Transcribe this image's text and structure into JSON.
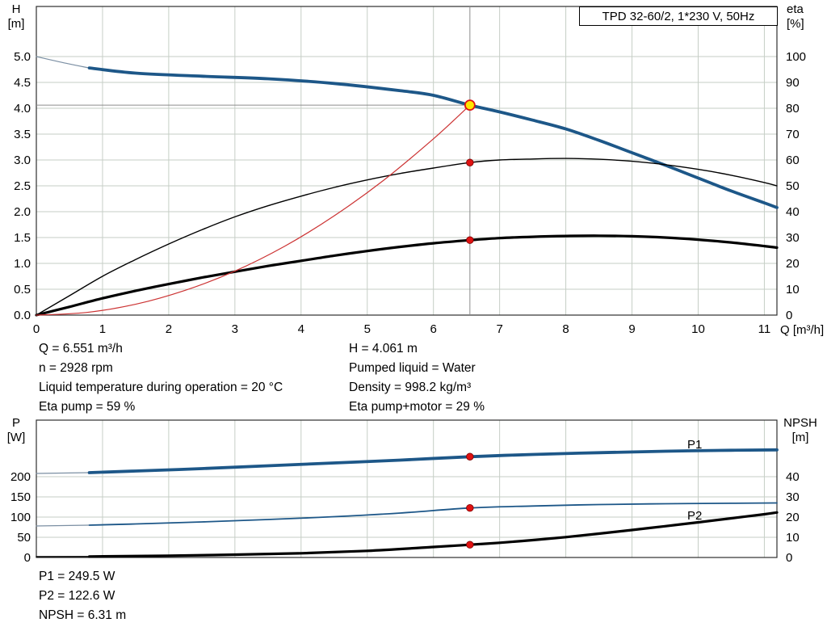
{
  "title_box": "TPD 32-60/2, 1*230 V, 50Hz",
  "colors": {
    "curve_blue": "#1d5788",
    "curve_blue_thin": "#7b8fa3",
    "curve_black": "#000000",
    "curve_red": "#cc3333",
    "marker_red": "#e01212",
    "duty_yellow": "#ffe600",
    "grid": "#c6cec6",
    "axis": "#2e2e2e",
    "crosshair": "#8c8c8c"
  },
  "chart_data": [
    {
      "id": "performance",
      "type": "line",
      "x": {
        "label": "Q [m³/h]",
        "min": 0,
        "max": 11.19,
        "tick_values": [
          0,
          1,
          2,
          3,
          4,
          5,
          6,
          7,
          8,
          9,
          10,
          11
        ],
        "tick_labels": [
          "0",
          "1",
          "2",
          "3",
          "4",
          "5",
          "6",
          "7",
          "8",
          "9",
          "10",
          "11"
        ]
      },
      "y_left": {
        "label_lines": [
          "H",
          "[m]"
        ],
        "min": 0,
        "max": 5.969,
        "tick_values": [
          0,
          0.5,
          1,
          1.5,
          2,
          2.5,
          3,
          3.5,
          4,
          4.5,
          5
        ],
        "tick_labels": [
          "0.0",
          "0.5",
          "1.0",
          "1.5",
          "2.0",
          "2.5",
          "3.0",
          "3.5",
          "4.0",
          "4.5",
          "5.0"
        ]
      },
      "y_right": {
        "label_lines": [
          "eta",
          "[%]"
        ],
        "min": 0,
        "max": 119.4,
        "tick_values": [
          0,
          10,
          20,
          30,
          40,
          50,
          60,
          70,
          80,
          90,
          100
        ],
        "tick_labels": [
          "0",
          "10",
          "20",
          "30",
          "40",
          "50",
          "60",
          "70",
          "80",
          "90",
          "100"
        ]
      },
      "series": [
        {
          "id": "pump-curve-extension",
          "axis": "left",
          "style": "thin_blue",
          "x": [
            0,
            0.45,
            0.8
          ],
          "y": [
            5.0,
            4.87,
            4.78
          ]
        },
        {
          "id": "pump-curve",
          "axis": "left",
          "style": "thick_blue",
          "x": [
            0.8,
            1.5,
            2.5,
            3.5,
            4.5,
            5.5,
            6.0,
            6.551,
            7.0,
            7.5,
            8.0,
            8.5,
            9.0,
            9.5,
            10.0,
            10.5,
            11.0,
            11.19
          ],
          "y": [
            4.78,
            4.68,
            4.62,
            4.57,
            4.48,
            4.34,
            4.25,
            4.061,
            3.93,
            3.77,
            3.6,
            3.38,
            3.14,
            2.9,
            2.65,
            2.4,
            2.17,
            2.08
          ]
        },
        {
          "id": "eta-pump-curve",
          "axis": "right",
          "style": "thin_black",
          "x": [
            0,
            0.5,
            1,
            1.5,
            2,
            2.5,
            3,
            3.5,
            4,
            4.5,
            5,
            5.5,
            6,
            6.551,
            7,
            7.5,
            8,
            8.5,
            9,
            9.5,
            10,
            10.5,
            11,
            11.19
          ],
          "y": [
            0,
            7.5,
            15,
            21.5,
            27.5,
            33,
            38,
            42.3,
            46,
            49.4,
            52.3,
            54.8,
            56.9,
            59,
            60,
            60.4,
            60.6,
            60.3,
            59.5,
            58.2,
            56.4,
            54.1,
            51.3,
            50
          ]
        },
        {
          "id": "eta-pump-motor-curve",
          "axis": "right",
          "style": "thick_black",
          "x": [
            0,
            0.5,
            1,
            1.5,
            2,
            2.5,
            3,
            3.5,
            4,
            4.5,
            5,
            5.5,
            6,
            6.551,
            7,
            7.5,
            8,
            8.5,
            9,
            9.5,
            10,
            10.5,
            11,
            11.19
          ],
          "y": [
            0,
            3.2,
            6.5,
            9.4,
            12,
            14.5,
            16.8,
            19,
            21,
            23,
            24.8,
            26.4,
            27.8,
            29,
            29.8,
            30.3,
            30.6,
            30.7,
            30.5,
            30,
            29.2,
            28.1,
            26.7,
            26.1
          ]
        },
        {
          "id": "system-curve",
          "axis": "left",
          "style": "thin_red",
          "x": [
            0,
            0.75,
            1.5,
            2.25,
            3,
            3.75,
            4.5,
            5.25,
            6,
            6.551
          ],
          "y": [
            0,
            0.05,
            0.21,
            0.48,
            0.85,
            1.33,
            1.92,
            2.61,
            3.41,
            4.061
          ]
        }
      ],
      "crosshair": {
        "x": 6.551,
        "y": 4.061
      },
      "duty_point": {
        "x": 6.551,
        "y": 4.061,
        "axis": "left"
      },
      "markers": [
        {
          "x": 6.551,
          "y": 59,
          "axis": "right"
        },
        {
          "x": 6.551,
          "y": 29,
          "axis": "right"
        }
      ]
    },
    {
      "id": "power-npsh",
      "type": "line",
      "x": {
        "label": "",
        "min": 0,
        "max": 11.19,
        "tick_values": [
          0,
          1,
          2,
          3,
          4,
          5,
          6,
          7,
          8,
          9,
          10,
          11
        ],
        "tick_labels": [
          "0",
          "1",
          "2",
          "3",
          "4",
          "5",
          "6",
          "7",
          "8",
          "9",
          "10",
          "11"
        ]
      },
      "y_left": {
        "label_lines": [
          "P",
          "[W]"
        ],
        "min": 0,
        "max": 340,
        "tick_values": [
          0,
          50,
          100,
          150,
          200
        ],
        "tick_labels": [
          "0",
          "50",
          "100",
          "150",
          "200"
        ]
      },
      "y_right": {
        "label_lines": [
          "NPSH",
          "[m]"
        ],
        "min": 0,
        "max": 68,
        "tick_values": [
          0,
          10,
          20,
          30,
          40
        ],
        "tick_labels": [
          "0",
          "10",
          "20",
          "30",
          "40"
        ]
      },
      "series": [
        {
          "id": "p1-curve-extension",
          "axis": "left",
          "style": "thin_blue",
          "x": [
            0,
            0.8
          ],
          "y": [
            208,
            210
          ]
        },
        {
          "id": "p1-curve",
          "label": "P1",
          "axis": "left",
          "style": "thick_blue",
          "x": [
            0.8,
            1.5,
            2.5,
            3.5,
            4.5,
            5.5,
            6.551,
            7.5,
            8.5,
            9.5,
            10.5,
            11.19
          ],
          "y": [
            210,
            214,
            220,
            227,
            234,
            241,
            249.5,
            255,
            259.5,
            263,
            265.5,
            266.5
          ]
        },
        {
          "id": "p2-curve-extension",
          "axis": "left",
          "style": "thin_blue",
          "x": [
            0,
            0.8
          ],
          "y": [
            78,
            80
          ]
        },
        {
          "id": "p2-curve",
          "label": "P2",
          "axis": "left",
          "style": "medium_blue",
          "x": [
            0.8,
            1.5,
            2.5,
            3.5,
            4.5,
            5.5,
            6.551,
            7.5,
            8.5,
            9.5,
            10.5,
            11.19
          ],
          "y": [
            80,
            83,
            88,
            94,
            101,
            110,
            122.6,
            127.5,
            131,
            133,
            134.3,
            135
          ]
        },
        {
          "id": "npsh-curve-extension",
          "axis": "right",
          "style": "thin_black",
          "x": [
            0,
            0.8
          ],
          "y": [
            0.4,
            0.5
          ]
        },
        {
          "id": "npsh-curve",
          "axis": "right",
          "style": "thick_black",
          "x": [
            0.8,
            2,
            3,
            4,
            5,
            6,
            6.551,
            7,
            7.5,
            8,
            8.5,
            9,
            9.5,
            10,
            10.5,
            11,
            11.19
          ],
          "y": [
            0.5,
            0.9,
            1.4,
            2.1,
            3.3,
            5.2,
            6.31,
            7.3,
            8.6,
            10.1,
            11.8,
            13.6,
            15.5,
            17.4,
            19.4,
            21.4,
            22.3
          ]
        }
      ],
      "markers": [
        {
          "x": 6.551,
          "y": 249.5,
          "axis": "left"
        },
        {
          "x": 6.551,
          "y": 122.6,
          "axis": "left"
        },
        {
          "x": 6.551,
          "y": 6.31,
          "axis": "right"
        }
      ]
    }
  ],
  "info_top": {
    "left": [
      "Q = 6.551 m³/h",
      "n = 2928 rpm",
      "Liquid temperature during operation = 20 °C",
      "Eta pump = 59 %"
    ],
    "right": [
      "H = 4.061 m",
      "Pumped liquid = Water",
      "Density = 998.2 kg/m³",
      "Eta pump+motor = 29 %"
    ]
  },
  "info_bottom": [
    "P1 = 249.5 W",
    "P2 = 122.6 W",
    "NPSH = 6.31 m"
  ]
}
